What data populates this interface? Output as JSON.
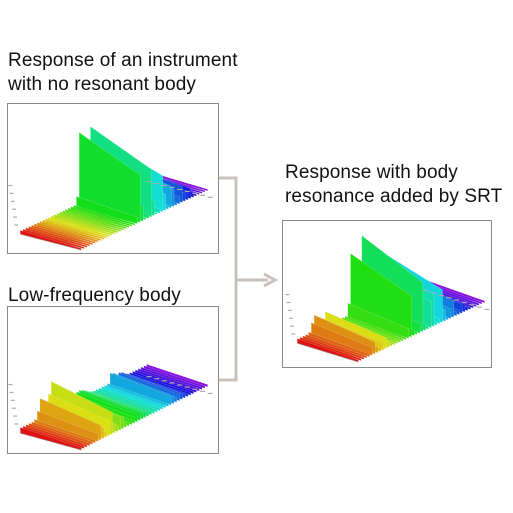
{
  "captions": {
    "no_body": [
      "Response of an instrument",
      "with no resonant body"
    ],
    "low_body": [
      "Low-frequency body"
    ],
    "result": [
      "Response with body",
      "resonance added by SRT"
    ]
  },
  "colors": {
    "connector": "#c9c2bb",
    "border": "#8a8a8a",
    "spectrum_start": "#d81e1e",
    "spectrum_mid": "#2fa83a",
    "spectrum_end": "#8a55c8"
  }
}
